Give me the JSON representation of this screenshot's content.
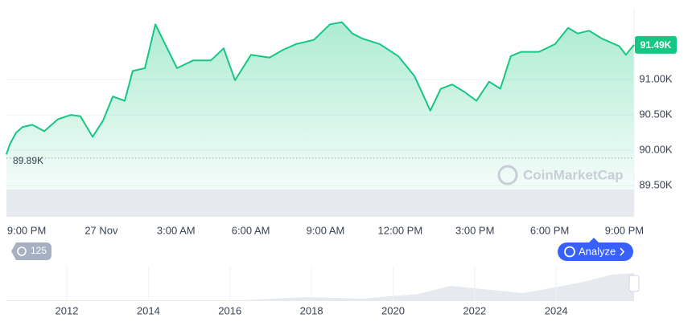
{
  "chart_data": {
    "type": "area",
    "x": [
      -0.81,
      -0.68,
      -0.42,
      -0.16,
      0.23,
      0.71,
      1.26,
      1.78,
      2.16,
      2.65,
      3.07,
      3.46,
      3.94,
      4.26,
      4.75,
      5.17,
      5.56,
      6.04,
      6.69,
      7.4,
      7.91,
      8.37,
      9.01,
      9.75,
      10.3,
      10.82,
      11.53,
      12.18,
      12.66,
      13.08,
      13.47,
      14.18,
      14.92,
      15.57,
      16.21,
      16.63,
      17.09,
      17.6,
      18.06,
      18.57,
      19.02,
      19.44,
      19.86,
      20.57,
      21.22,
      21.74,
      22.13,
      22.58,
      23.09,
      23.8,
      24.06,
      24.39
    ],
    "series": [
      {
        "color": "#16c784",
        "values": [
          89940,
          90080,
          90250,
          90330,
          90360,
          90270,
          90440,
          90500,
          90480,
          90190,
          90420,
          90760,
          90700,
          91120,
          91160,
          91780,
          91500,
          91160,
          91270,
          91270,
          91440,
          90990,
          91350,
          91310,
          91420,
          91500,
          91560,
          91780,
          91810,
          91650,
          91580,
          91500,
          91330,
          91050,
          90560,
          90870,
          90930,
          90820,
          90700,
          90970,
          90870,
          91330,
          91390,
          91390,
          91500,
          91730,
          91650,
          91690,
          91580,
          91470,
          91350,
          91490
        ]
      }
    ],
    "xlim": [
      -0.81,
      24.39
    ],
    "xticks": [
      {
        "value": 0,
        "label": "9:00 PM"
      },
      {
        "value": 3,
        "label": "27 Nov"
      },
      {
        "value": 6,
        "label": "3:00 AM"
      },
      {
        "value": 9,
        "label": "6:00 AM"
      },
      {
        "value": 12,
        "label": "9:00 AM"
      },
      {
        "value": 15,
        "label": "12:00 PM"
      },
      {
        "value": 18,
        "label": "3:00 PM"
      },
      {
        "value": 21,
        "label": "6:00 PM"
      },
      {
        "value": 24,
        "label": "9:00 PM"
      }
    ],
    "ylim": [
      89060,
      92010
    ],
    "yticks": [
      {
        "value": 89500,
        "label": "89.50K"
      },
      {
        "value": 90000,
        "label": "90.00K"
      },
      {
        "value": 90500,
        "label": "90.50K"
      },
      {
        "value": 91000,
        "label": "91.00K"
      }
    ],
    "grid": true,
    "last_price": {
      "value": 91490,
      "label": "91.49K"
    },
    "open_price": {
      "value": 89890,
      "label": "89.89K"
    },
    "watermark": "CoinMarketCap",
    "badge": "125",
    "button": "Analyze",
    "navigator": {
      "xlim": [
        2010.52,
        2025.91
      ],
      "xticks": [
        2012,
        2014,
        2016,
        2018,
        2020,
        2022,
        2024
      ]
    }
  }
}
